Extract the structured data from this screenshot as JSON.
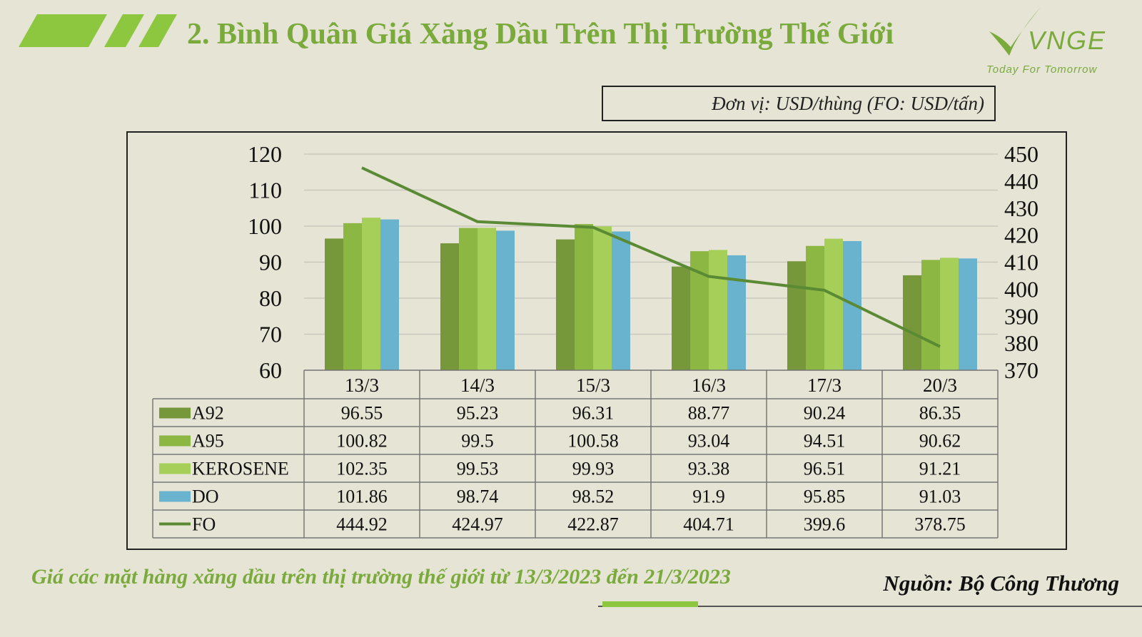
{
  "header": {
    "title": "2. Bình Quân Giá Xăng Dầu Trên Thị Trường Thế Giới",
    "logo_text": "VNGE",
    "tagline": "Today For Tomorrow"
  },
  "unit_note": "Đơn vị: USD/thùng (FO: USD/tấn)",
  "caption": "Giá các mặt hàng xăng dầu trên thị trường thế giới từ 13/3/2023  đến 21/3/2023",
  "source": "Nguồn: Bộ Công Thương",
  "colors": {
    "accent": "#7aaa3c",
    "A92": "#76973a",
    "A95": "#8cb743",
    "KEROSENE": "#a5cf59",
    "DO": "#69b3ce",
    "FO": "#5a8a34",
    "background": "#e6e4d5"
  },
  "chart_data": {
    "type": "bar",
    "categories": [
      "13/3",
      "14/3",
      "15/3",
      "16/3",
      "17/3",
      "20/3"
    ],
    "series": [
      {
        "name": "A92",
        "type": "bar",
        "axis": "left",
        "values": [
          96.55,
          95.23,
          96.31,
          88.77,
          90.24,
          86.35
        ]
      },
      {
        "name": "A95",
        "type": "bar",
        "axis": "left",
        "values": [
          100.82,
          99.5,
          100.58,
          93.04,
          94.51,
          90.62
        ]
      },
      {
        "name": "KEROSENE",
        "type": "bar",
        "axis": "left",
        "values": [
          102.35,
          99.53,
          99.93,
          93.38,
          96.51,
          91.21
        ]
      },
      {
        "name": "DO",
        "type": "bar",
        "axis": "left",
        "values": [
          101.86,
          98.74,
          98.52,
          91.9,
          95.85,
          91.03
        ]
      },
      {
        "name": "FO",
        "type": "line",
        "axis": "right",
        "values": [
          444.92,
          424.97,
          422.87,
          404.71,
          399.6,
          378.75
        ]
      }
    ],
    "value_labels": {
      "A92": [
        "96.55",
        "95.23",
        "96.31",
        "88.77",
        "90.24",
        "86.35"
      ],
      "A95": [
        "100.82",
        "99.5",
        "100.58",
        "93.04",
        "94.51",
        "90.62"
      ],
      "KEROSENE": [
        "102.35",
        "99.53",
        "99.93",
        "93.38",
        "96.51",
        "91.21"
      ],
      "DO": [
        "101.86",
        "98.74",
        "98.52",
        "91.9",
        "95.85",
        "91.03"
      ],
      "FO": [
        "444.92",
        "424.97",
        "422.87",
        "404.71",
        "399.6",
        "378.75"
      ]
    },
    "ylim_left": [
      60,
      120
    ],
    "yticks_left": [
      "60",
      "70",
      "80",
      "90",
      "100",
      "110",
      "120"
    ],
    "ylim_right": [
      370,
      450
    ],
    "yticks_right": [
      "370",
      "380",
      "390",
      "400",
      "410",
      "420",
      "430",
      "440",
      "450"
    ],
    "grid": true,
    "legend": "data-table"
  }
}
